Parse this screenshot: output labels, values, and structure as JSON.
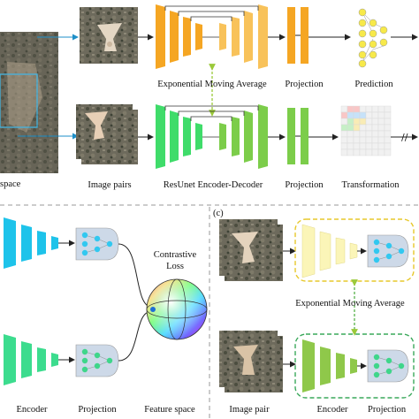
{
  "colors": {
    "orange": "#f5a623",
    "orange_light": "#f8c25a",
    "green": "#5cd17a",
    "green_dark": "#2fb85a",
    "cyan": "#1ec3ea",
    "cyan_dark": "#0a9fd6",
    "teal_green": "#3cdc8e",
    "yellow_pale": "#fbf5b8",
    "olive_green": "#8fc84a",
    "projection_box": "#cdd9e8",
    "node_yellow": "#f7e94a",
    "node_blue": "#32c8f0",
    "node_green": "#3fd68a",
    "dashed_yellow": "#e7c82b",
    "dashed_green": "#3aa85a",
    "arrow_ema_top": "#9bc93a",
    "arrow_ema_bottom": "#57b24a"
  },
  "top": {
    "left_label": "space",
    "row1": {
      "ema_label": "Exponential Moving Average",
      "projection_label": "Projection",
      "prediction_label": "Prediction"
    },
    "row2": {
      "image_pairs_label": "Image pairs",
      "encoder_decoder_label": "ResUnet Encoder-Decoder",
      "projection_label": "Projection",
      "transformation_label": "Transformation"
    }
  },
  "panel_b": {
    "contrastive_loss_label": "Contrastive\nLoss",
    "encoder_label": "Encoder",
    "projection_label": "Projection",
    "feature_space_label": "Feature space"
  },
  "panel_c": {
    "panel_tag": "(c)",
    "ema_label": "Exponential Moving Average",
    "image_pair_label": "Image pair",
    "encoder_label": "Encoder",
    "projection_label": "Projection"
  }
}
